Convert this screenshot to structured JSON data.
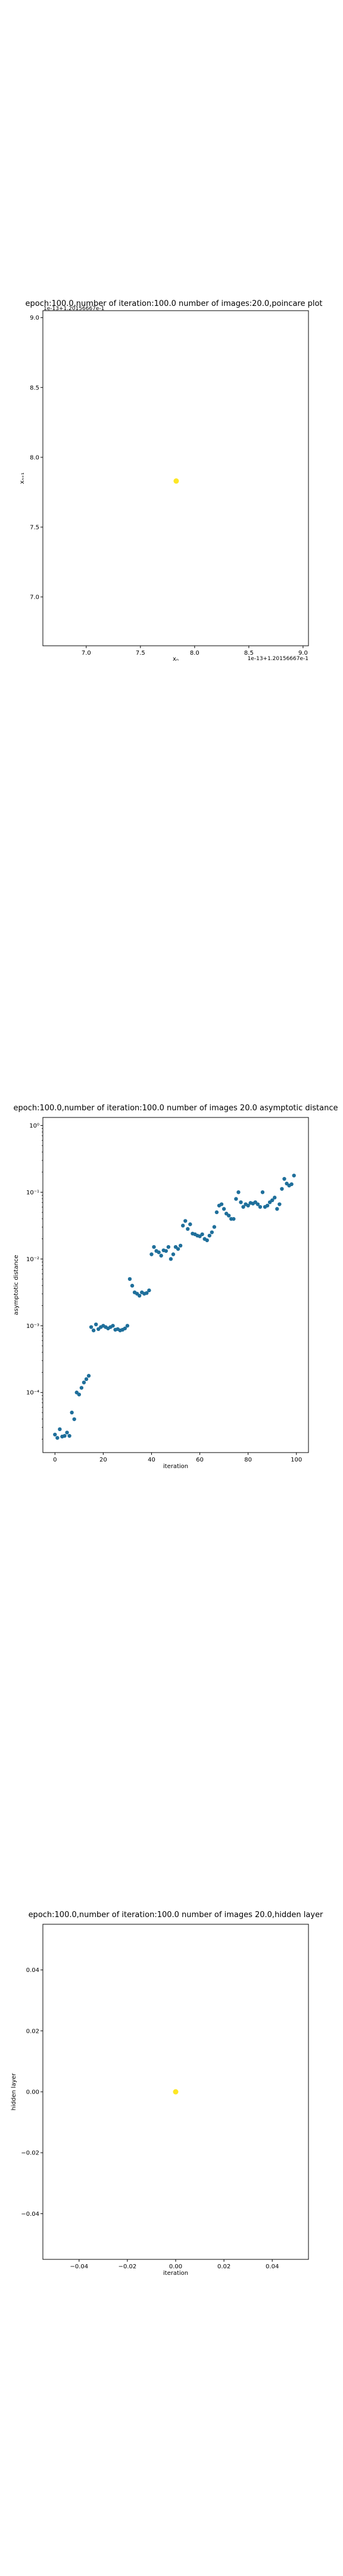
{
  "chart_data": [
    {
      "type": "scatter",
      "title": "epoch:100.0,number of iteration:100.0  number of images:20.0,poincare plot",
      "xlabel": "xₙ",
      "ylabel": "xₙ₊₁",
      "offset_x": "1e-13+1.20156667e-1",
      "offset_y": "1e-13+1.20156667e-1",
      "x_ticks": [
        "7.0",
        "7.5",
        "8.0",
        "8.5",
        "9.0"
      ],
      "y_ticks": [
        "7.0",
        "7.5",
        "8.0",
        "8.5",
        "9.0"
      ],
      "xlim": [
        6.6,
        9.05
      ],
      "ylim": [
        6.65,
        9.05
      ],
      "points": [
        {
          "x": 7.83,
          "y": 7.83
        }
      ],
      "marker_color": "#fde725"
    },
    {
      "type": "scatter",
      "title": "epoch:100.0,number of iteration:100.0  number of images 20.0 asymptotic distance",
      "xlabel": "iteration",
      "ylabel": "asymptotic distance",
      "y_scale": "log",
      "x_ticks": [
        "0",
        "20",
        "40",
        "60",
        "80",
        "100"
      ],
      "y_ticks": [
        "10⁻⁴",
        "10⁻³",
        "10⁻²",
        "10⁻¹",
        "10⁰"
      ],
      "xlim": [
        -5,
        105
      ],
      "ylim_log10": [
        -4.9,
        0.12
      ],
      "marker_color": "#1f6f9b",
      "x": [
        0,
        1,
        2,
        3,
        4,
        5,
        6,
        7,
        8,
        9,
        10,
        11,
        12,
        13,
        14,
        15,
        16,
        17,
        18,
        19,
        20,
        21,
        22,
        23,
        24,
        25,
        26,
        27,
        28,
        29,
        30,
        31,
        32,
        33,
        34,
        35,
        36,
        37,
        38,
        39,
        40,
        41,
        42,
        43,
        44,
        45,
        46,
        47,
        48,
        49,
        50,
        51,
        52,
        53,
        54,
        55,
        56,
        57,
        58,
        59,
        60,
        61,
        62,
        63,
        64,
        65,
        66,
        67,
        68,
        69,
        70,
        71,
        72,
        73,
        74,
        75,
        76,
        77,
        78,
        79,
        80,
        81,
        82,
        83,
        84,
        85,
        86,
        87,
        88,
        89,
        90,
        91,
        92,
        93,
        94,
        95,
        96,
        97,
        98,
        99
      ],
      "y_log10": [
        -4.63,
        -4.68,
        -4.55,
        -4.66,
        -4.65,
        -4.6,
        -4.65,
        -4.3,
        -4.4,
        -4.0,
        -4.03,
        -3.93,
        -3.85,
        -3.8,
        -3.75,
        -3.02,
        -3.07,
        -2.98,
        -3.05,
        -3.02,
        -3.0,
        -3.02,
        -3.04,
        -3.02,
        -3.0,
        -3.06,
        -3.05,
        -3.07,
        -3.06,
        -3.04,
        -3.0,
        -2.3,
        -2.4,
        -2.5,
        -2.52,
        -2.55,
        -2.5,
        -2.52,
        -2.51,
        -2.47,
        -1.93,
        -1.82,
        -1.88,
        -1.9,
        -1.95,
        -1.87,
        -1.88,
        -1.82,
        -2.0,
        -1.93,
        -1.82,
        -1.85,
        -1.8,
        -1.5,
        -1.43,
        -1.55,
        -1.48,
        -1.62,
        -1.63,
        -1.65,
        -1.66,
        -1.63,
        -1.7,
        -1.72,
        -1.65,
        -1.6,
        -1.52,
        -1.3,
        -1.2,
        -1.18,
        -1.25,
        -1.32,
        -1.35,
        -1.4,
        -1.4,
        -1.1,
        -1.0,
        -1.15,
        -1.22,
        -1.18,
        -1.2,
        -1.16,
        -1.17,
        -1.15,
        -1.18,
        -1.22,
        -1.0,
        -1.22,
        -1.2,
        -1.15,
        -1.12,
        -1.08,
        -1.25,
        -1.18,
        -0.95,
        -0.8,
        -0.87,
        -0.9,
        -0.88,
        -0.75
      ]
    },
    {
      "type": "scatter",
      "title": "epoch:100.0,number of iteration:100.0  number of images 20.0,hidden layer",
      "xlabel": "iteration",
      "ylabel": "hidden layer",
      "x_ticks": [
        "−0.04",
        "−0.02",
        "0.00",
        "0.02",
        "0.04"
      ],
      "y_ticks": [
        "−0.04",
        "−0.02",
        "0.00",
        "0.02",
        "0.04"
      ],
      "xlim": [
        -0.055,
        0.055
      ],
      "ylim": [
        -0.055,
        0.055
      ],
      "points": [
        {
          "x": 0.0,
          "y": 0.0
        }
      ],
      "marker_color": "#fde725"
    }
  ]
}
